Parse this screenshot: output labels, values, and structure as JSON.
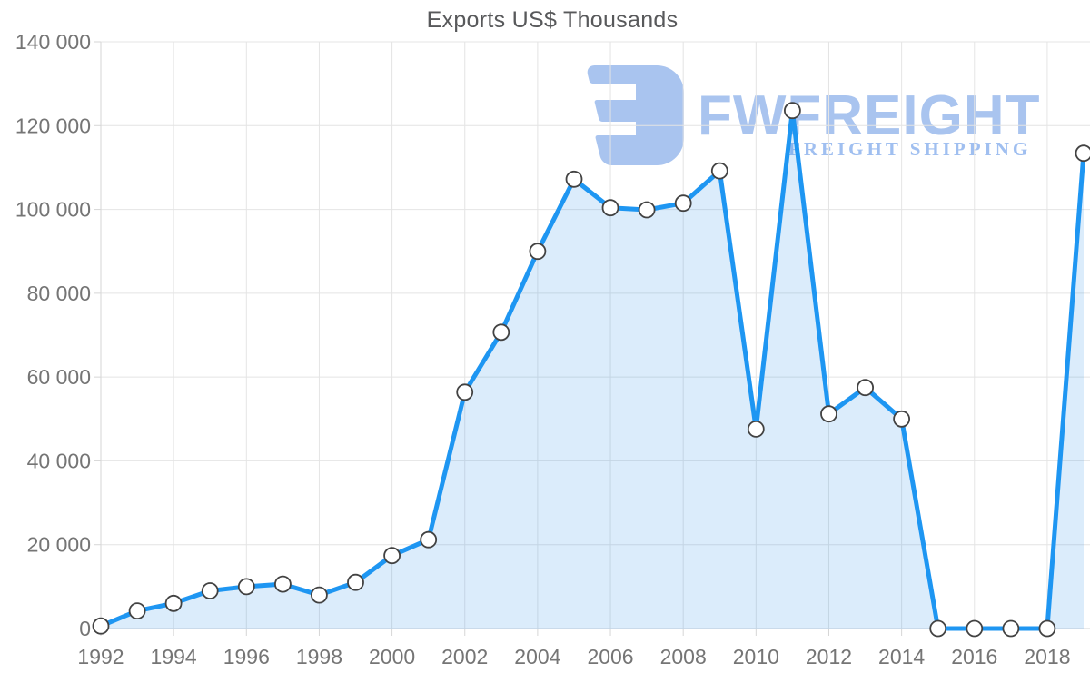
{
  "title": "Exports US$ Thousands",
  "watermark": {
    "brand": "FWFREIGHT",
    "tagline": "FREIGHT SHIPPING",
    "color": "#a9c4ef"
  },
  "chart_data": {
    "type": "area",
    "title": "Exports US$ Thousands",
    "x": [
      1992,
      1993,
      1994,
      1995,
      1996,
      1997,
      1998,
      1999,
      2000,
      2001,
      2002,
      2003,
      2004,
      2005,
      2006,
      2007,
      2008,
      2009,
      2010,
      2011,
      2012,
      2013,
      2014,
      2015,
      2016,
      2017,
      2018,
      2019
    ],
    "values": [
      600,
      4200,
      6000,
      9000,
      10000,
      10600,
      8000,
      11000,
      17400,
      21200,
      56400,
      70700,
      90000,
      107200,
      100400,
      99900,
      101500,
      109200,
      47600,
      123600,
      51200,
      57500,
      50000,
      0,
      0,
      0,
      0,
      113400
    ],
    "xlabel": "",
    "ylabel": "",
    "ylim": [
      0,
      140000
    ],
    "ytick_step": 20000,
    "y_tick_labels": [
      "0",
      "20 000",
      "40 000",
      "60 000",
      "80 000",
      "100 000",
      "120 000",
      "140 000"
    ],
    "x_tick_labels": [
      "1992",
      "1994",
      "1996",
      "1998",
      "2000",
      "2002",
      "2004",
      "2006",
      "2008",
      "2010",
      "2012",
      "2014",
      "2016",
      "2018"
    ],
    "grid": true,
    "legend": false,
    "marker": "circle",
    "colors": {
      "line": "#1e96f2",
      "fill": "rgba(30,136,229,0.16)",
      "marker_fill": "#ffffff",
      "marker_stroke": "#424242",
      "grid": "#e4e4e4",
      "axis": "#d6d6d6",
      "tick_label": "#757575",
      "title": "#58595b"
    }
  }
}
